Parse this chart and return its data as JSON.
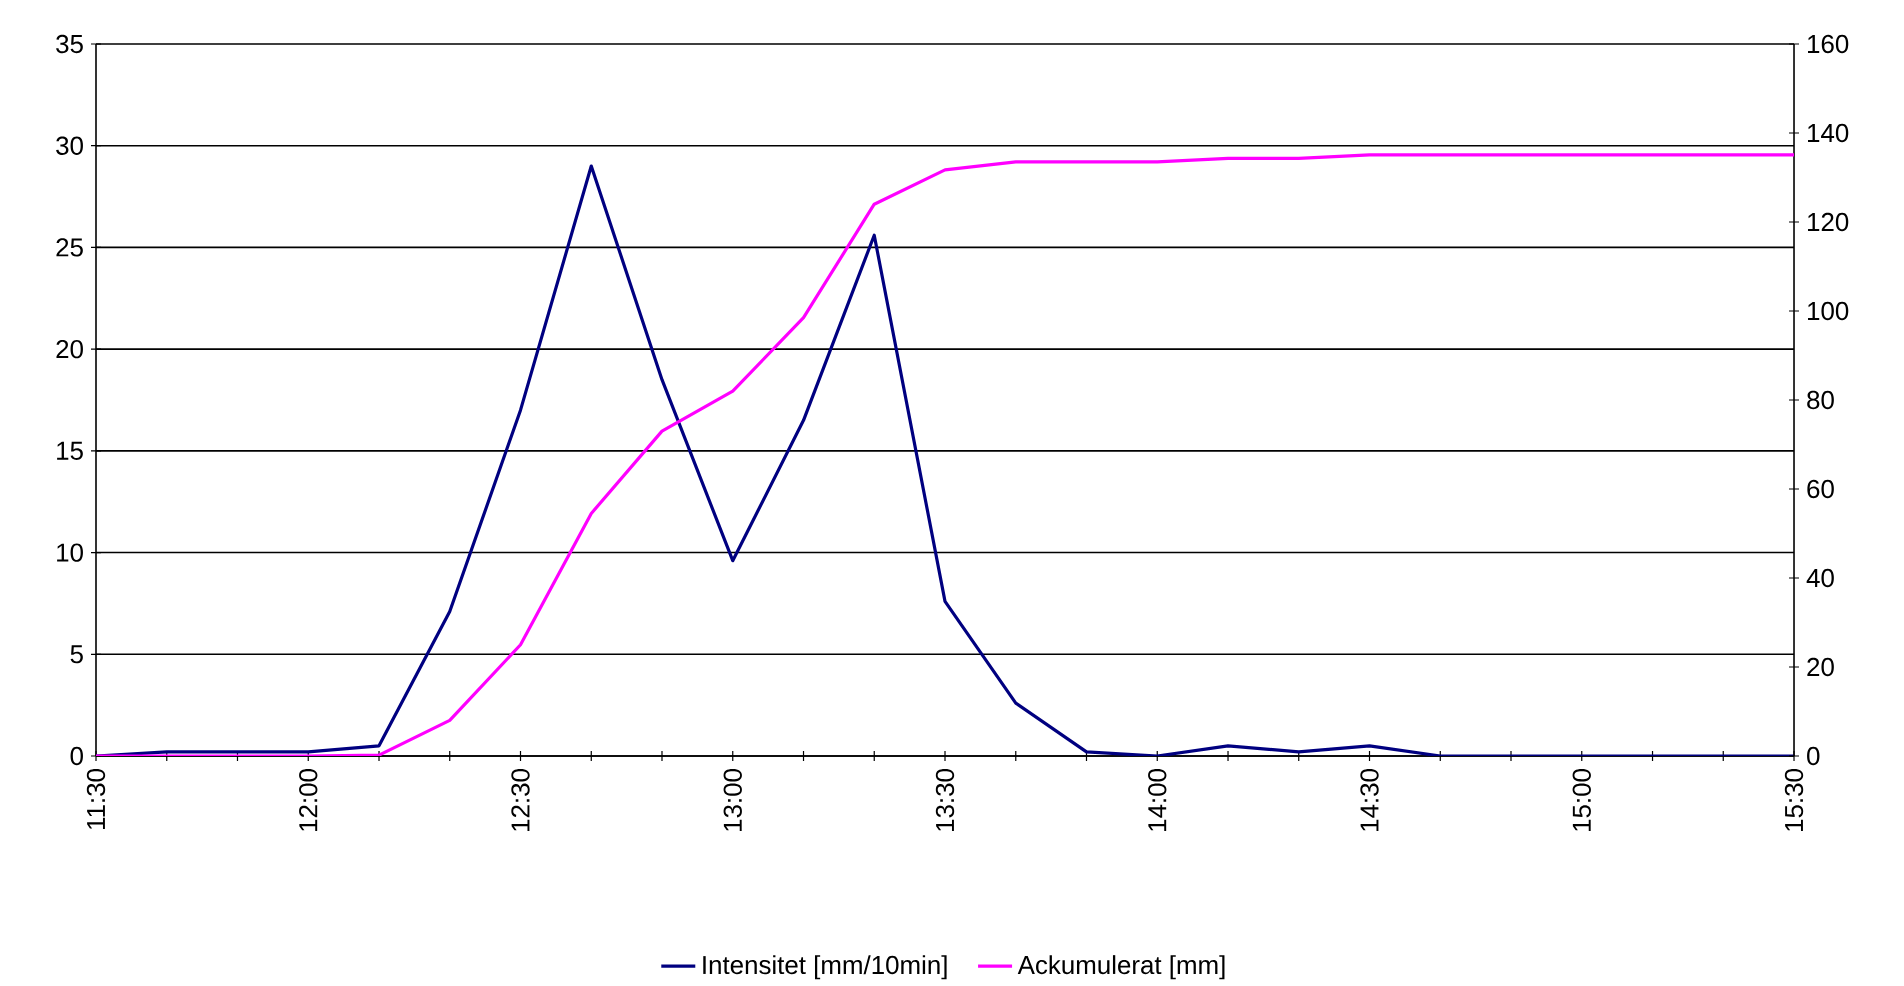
{
  "chart_data": {
    "type": "line",
    "x": [
      11.5,
      11.6667,
      11.8333,
      12.0,
      12.1667,
      12.3333,
      12.5,
      12.6667,
      12.8333,
      13.0,
      13.1667,
      13.3333,
      13.5,
      13.6667,
      13.8333,
      14.0,
      14.1667,
      14.3333,
      14.5,
      14.6667,
      14.8333,
      15.0,
      15.1667,
      15.3333,
      15.5
    ],
    "series": [
      {
        "name": "Intensitet [mm/10min]",
        "color": "#000080",
        "axis": "y",
        "values": [
          0,
          0.2,
          0.2,
          0.2,
          0.5,
          7.1,
          17,
          29,
          18.5,
          9.6,
          16.5,
          25.6,
          7.6,
          2.6,
          0.2,
          0,
          0.5,
          0.2,
          0.5,
          0,
          0,
          0,
          0,
          0,
          0
        ]
      },
      {
        "name": "Ackumulerat [mm]",
        "color": "#ff00ff",
        "axis": "y2",
        "values": [
          0,
          0,
          0,
          0,
          0.2,
          8,
          25,
          54.5,
          73,
          82,
          98.5,
          124,
          131.7,
          133.5,
          133.5,
          133.5,
          134.3,
          134.3,
          135.1,
          135.1,
          135.1,
          135.1,
          135.1,
          135.1,
          135.1
        ]
      }
    ],
    "xlim": [
      11.5,
      15.5
    ],
    "xticks": [
      {
        "value": 11.5,
        "label": "11:30"
      },
      {
        "value": 11.6667,
        "label": null
      },
      {
        "value": 11.8333,
        "label": null
      },
      {
        "value": 12.0,
        "label": "12:00"
      },
      {
        "value": 12.1667,
        "label": null
      },
      {
        "value": 12.3333,
        "label": null
      },
      {
        "value": 12.5,
        "label": "12:30"
      },
      {
        "value": 12.6667,
        "label": null
      },
      {
        "value": 12.8333,
        "label": null
      },
      {
        "value": 13.0,
        "label": "13:00"
      },
      {
        "value": 13.1667,
        "label": null
      },
      {
        "value": 13.3333,
        "label": null
      },
      {
        "value": 13.5,
        "label": "13:30"
      },
      {
        "value": 13.6667,
        "label": null
      },
      {
        "value": 13.8333,
        "label": null
      },
      {
        "value": 14.0,
        "label": "14:00"
      },
      {
        "value": 14.1667,
        "label": null
      },
      {
        "value": 14.3333,
        "label": null
      },
      {
        "value": 14.5,
        "label": "14:30"
      },
      {
        "value": 14.6667,
        "label": null
      },
      {
        "value": 14.8333,
        "label": null
      },
      {
        "value": 15.0,
        "label": "15:00"
      },
      {
        "value": 15.1667,
        "label": null
      },
      {
        "value": 15.3333,
        "label": null
      },
      {
        "value": 15.5,
        "label": "15:30"
      }
    ],
    "ylim": [
      0,
      35
    ],
    "yticks": [
      0,
      5,
      10,
      15,
      20,
      25,
      30,
      35
    ],
    "y2lim": [
      0,
      160
    ],
    "y2ticks": [
      0,
      20,
      40,
      60,
      80,
      100,
      120,
      140,
      160
    ],
    "grid": "y",
    "legend": "bottom",
    "marker": "none",
    "line_style": "solid"
  }
}
